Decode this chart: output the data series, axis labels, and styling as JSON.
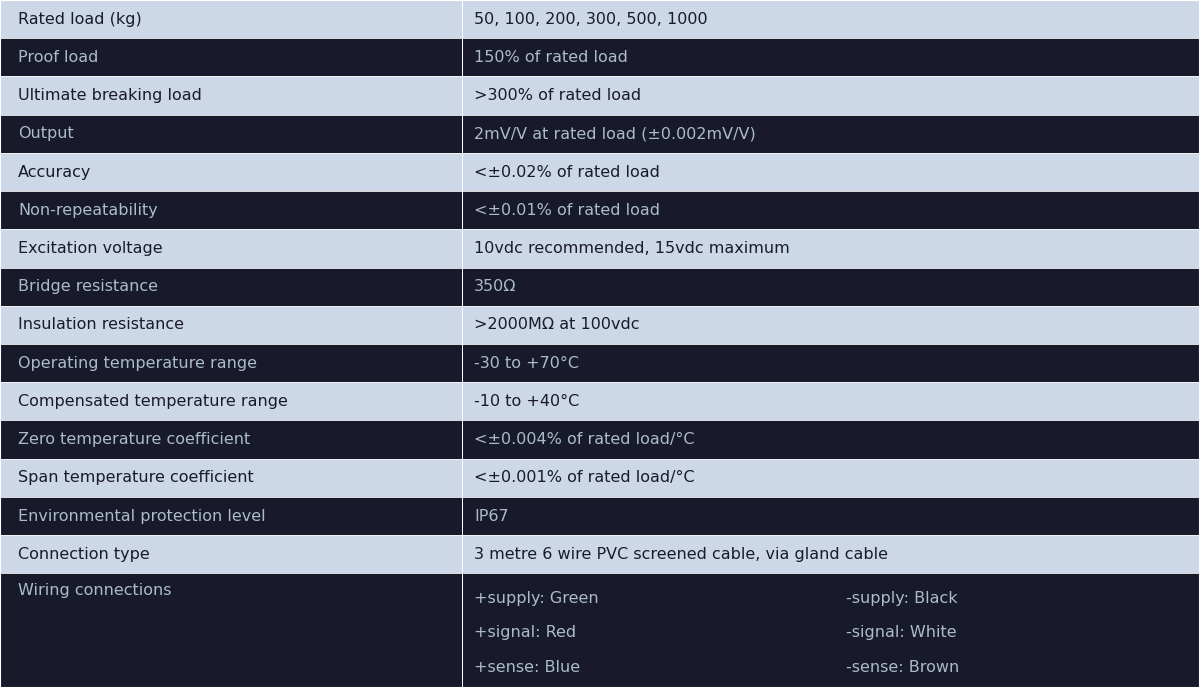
{
  "rows": [
    {
      "label": "Rated load (kg)",
      "value": "50, 100, 200, 300, 500, 1000",
      "dark": false
    },
    {
      "label": "Proof load",
      "value": "150% of rated load",
      "dark": true
    },
    {
      "label": "Ultimate breaking load",
      "value": ">300% of rated load",
      "dark": false
    },
    {
      "label": "Output",
      "value": "2mV/V at rated load (±0.002mV/V)",
      "dark": true
    },
    {
      "label": "Accuracy",
      "value": "<±0.02% of rated load",
      "dark": false
    },
    {
      "label": "Non-repeatability",
      "value": "<±0.01% of rated load",
      "dark": true
    },
    {
      "label": "Excitation voltage",
      "value": "10vdc recommended, 15vdc maximum",
      "dark": false
    },
    {
      "label": "Bridge resistance",
      "value": "350Ω",
      "dark": true
    },
    {
      "label": "Insulation resistance",
      "value": ">2000MΩ at 100vdc",
      "dark": false
    },
    {
      "label": "Operating temperature range",
      "value": "-30 to +70°C",
      "dark": true
    },
    {
      "label": "Compensated temperature range",
      "value": "-10 to +40°C",
      "dark": false
    },
    {
      "label": "Zero temperature coefficient",
      "value": "<±0.004% of rated load/°C",
      "dark": true
    },
    {
      "label": "Span temperature coefficient",
      "value": "<±0.001% of rated load/°C",
      "dark": false
    },
    {
      "label": "Environmental protection level",
      "value": "IP67",
      "dark": true
    },
    {
      "label": "Connection type",
      "value": "3 metre 6 wire PVC screened cable, via gland cable",
      "dark": false
    },
    {
      "label": "Wiring connections",
      "value": "wiring",
      "dark": true
    }
  ],
  "light_bg": "#ccd7e8",
  "dark_bg": "#18192a",
  "light_text": "#1a1a2e",
  "dark_text": "#aabccc",
  "border_color": "#ffffff",
  "col_split": 0.385,
  "wiring_items": [
    [
      "+supply: Green",
      "-supply: Black"
    ],
    [
      "+signal: Red",
      "-signal: White"
    ],
    [
      "+sense: Blue",
      "-sense: Brown"
    ]
  ]
}
